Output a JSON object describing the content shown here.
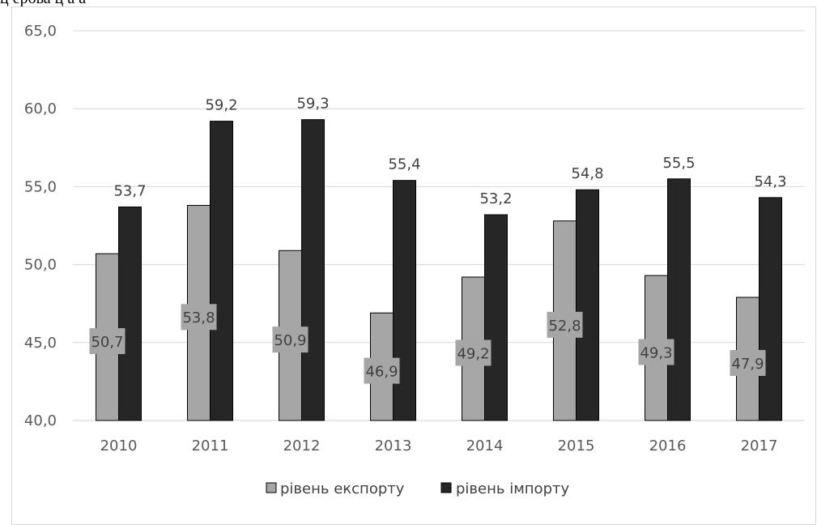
{
  "header_fragment": "ц    ерова     ц           а      а",
  "chart_data": {
    "type": "bar",
    "categories": [
      "2010",
      "2011",
      "2012",
      "2013",
      "2014",
      "2015",
      "2016",
      "2017"
    ],
    "series": [
      {
        "name": "рівень експорту",
        "values": [
          50.7,
          53.8,
          50.9,
          46.9,
          49.2,
          52.8,
          49.3,
          47.9
        ],
        "labels": [
          "50,7",
          "53,8",
          "50,9",
          "46,9",
          "49,2",
          "52,8",
          "49,3",
          "47,9"
        ],
        "color": "#a6a6a6"
      },
      {
        "name": "рівень імпорту",
        "values": [
          53.7,
          59.2,
          59.3,
          55.4,
          53.2,
          54.8,
          55.5,
          54.3
        ],
        "labels": [
          "53,7",
          "59,2",
          "59,3",
          "55,4",
          "53,2",
          "54,8",
          "55,5",
          "54,3"
        ],
        "color": "#262626"
      }
    ],
    "y_ticks": [
      "40,0",
      "45,0",
      "50,0",
      "55,0",
      "60,0",
      "65,0"
    ],
    "ylim": [
      40,
      65
    ],
    "grid": true,
    "legend": "bottom",
    "title": "",
    "xlabel": "",
    "ylabel": ""
  }
}
